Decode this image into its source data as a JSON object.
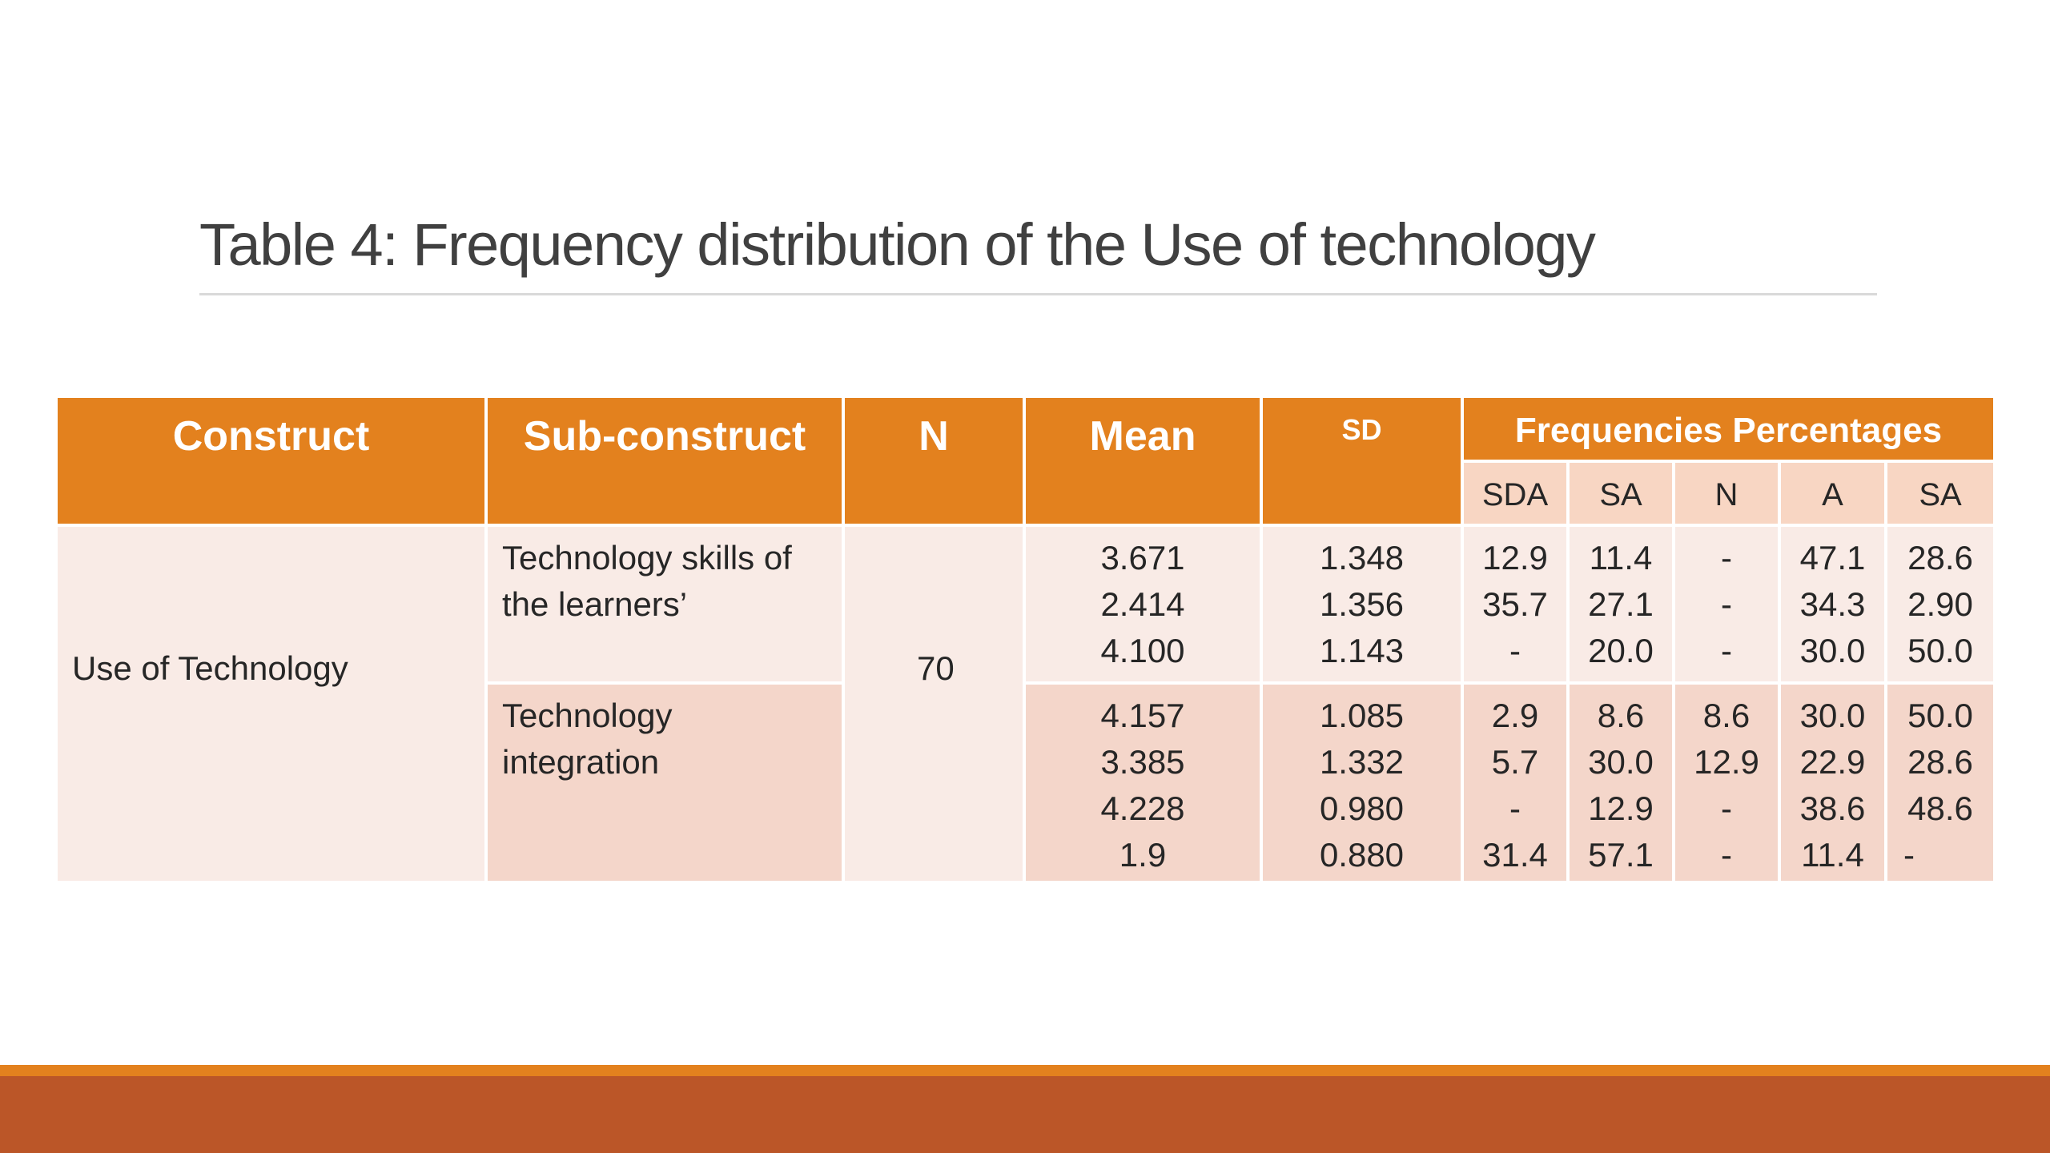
{
  "title": "Table 4: Frequency distribution of the Use of technology",
  "headers": {
    "construct": "Construct",
    "sub_construct": "Sub-construct",
    "n": "N",
    "mean": "Mean",
    "sd": "SD",
    "freq": "Frequencies Percentages",
    "freq_cols": [
      "SDA",
      "SA",
      "N",
      "A",
      "SA"
    ]
  },
  "construct": "Use of Technology",
  "n_value": "70",
  "groups": [
    {
      "sub_construct_lines": [
        "Technology skills of",
        "the learners’"
      ],
      "mean": [
        "3.671",
        "2.414",
        "4.100"
      ],
      "sd": [
        "1.348",
        "1.356",
        "1.143"
      ],
      "sda": [
        "12.9",
        "35.7",
        "-"
      ],
      "sa": [
        "11.4",
        "27.1",
        "20.0"
      ],
      "n": [
        "-",
        "-",
        "-"
      ],
      "a": [
        "47.1",
        "34.3",
        "30.0"
      ],
      "sa2": [
        "28.6",
        "2.90",
        "50.0"
      ]
    },
    {
      "sub_construct_lines": [
        "Technology",
        "integration"
      ],
      "mean": [
        "4.157",
        "3.385",
        "4.228",
        "1.9"
      ],
      "sd": [
        "1.085",
        "1.332",
        "0.980",
        "0.880"
      ],
      "sda": [
        "2.9",
        "5.7",
        "-",
        "31.4"
      ],
      "sa": [
        "8.6",
        "30.0",
        "12.9",
        "57.1"
      ],
      "n": [
        "8.6",
        "12.9",
        "-",
        "-"
      ],
      "a": [
        "30.0",
        "22.9",
        "38.6",
        "11.4"
      ],
      "sa2": [
        "50.0",
        "28.6",
        "48.6",
        "-"
      ]
    }
  ],
  "colors": {
    "header_orange": "#e3811e",
    "row_light": "#f9ebe6",
    "row_dark": "#f4d6ca",
    "bottom_band": "#bb5628"
  }
}
